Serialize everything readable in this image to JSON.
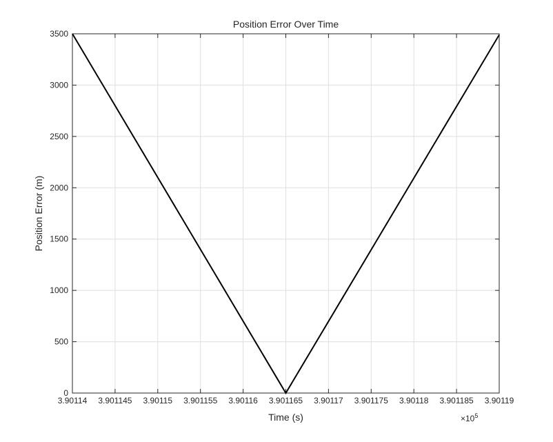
{
  "chart_data": {
    "type": "line",
    "title": "Position Error Over Time",
    "xlabel": "Time (s)",
    "ylabel": "Position Error (m)",
    "x_exponent_label": "×10",
    "x_exponent_power": "5",
    "xlim": [
      3.90114,
      3.90119
    ],
    "ylim": [
      0,
      3500
    ],
    "x_ticks": [
      3.90114,
      3.901145,
      3.90115,
      3.901155,
      3.90116,
      3.901165,
      3.90117,
      3.901175,
      3.90118,
      3.901185,
      3.90119
    ],
    "x_tick_labels": [
      "3.90114",
      "3.901145",
      "3.90115",
      "3.901155",
      "3.90116",
      "3.901165",
      "3.90117",
      "3.901175",
      "3.90118",
      "3.901185",
      "3.90119"
    ],
    "y_ticks": [
      0,
      500,
      1000,
      1500,
      2000,
      2500,
      3000,
      3500
    ],
    "y_tick_labels": [
      "0",
      "500",
      "1000",
      "1500",
      "2000",
      "2500",
      "3000",
      "3500"
    ],
    "grid": true,
    "series": [
      {
        "x": [
          3.90114,
          3.901165,
          3.90119
        ],
        "y": [
          3500,
          0,
          3490
        ],
        "color": "#000000"
      }
    ]
  }
}
